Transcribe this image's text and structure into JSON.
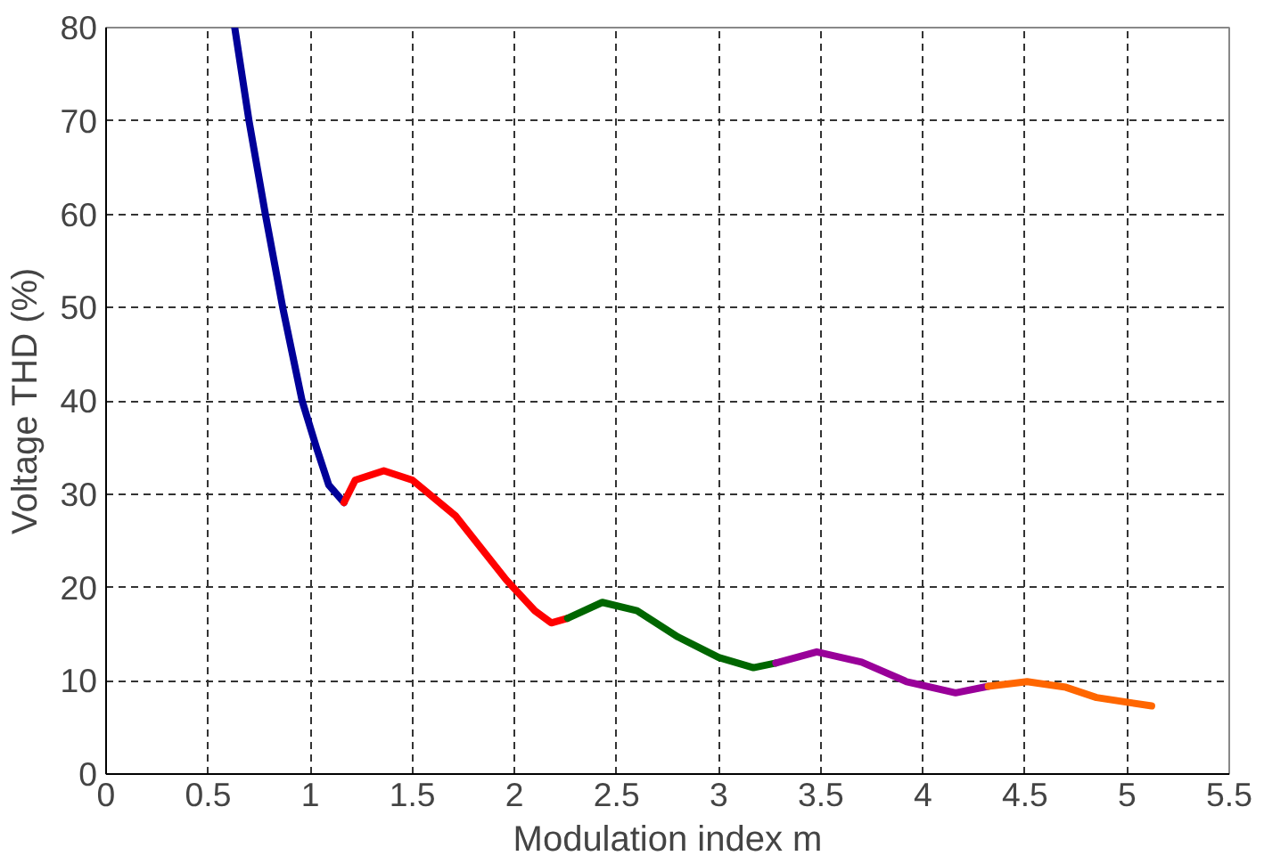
{
  "chart_data": {
    "type": "line",
    "xlabel": "Modulation index m",
    "ylabel": "Voltage THD (%)",
    "xlim": [
      0,
      5.5
    ],
    "ylim": [
      0,
      80
    ],
    "xticks": [
      0,
      0.5,
      1,
      1.5,
      2,
      2.5,
      3,
      3.5,
      4,
      4.5,
      5,
      5.5
    ],
    "yticks": [
      0,
      10,
      20,
      30,
      40,
      50,
      60,
      70,
      80
    ],
    "grid": true,
    "series": [
      {
        "color": "#000099",
        "x": [
          0.63,
          0.7,
          0.78,
          0.865,
          0.96,
          1.03,
          1.09,
          1.165
        ],
        "values": [
          80,
          70,
          60,
          50,
          40,
          35,
          31,
          29.1
        ]
      },
      {
        "color": "#ff0000",
        "x": [
          1.165,
          1.22,
          1.36,
          1.5,
          1.71,
          1.96,
          2.1,
          2.18,
          2.26
        ],
        "values": [
          29.1,
          31.5,
          32.5,
          31.5,
          27.7,
          20.8,
          17.5,
          16.2,
          16.7
        ]
      },
      {
        "color": "#006600",
        "x": [
          2.26,
          2.43,
          2.6,
          2.8,
          3.0,
          3.17,
          3.28
        ],
        "values": [
          16.7,
          18.4,
          17.5,
          14.7,
          12.5,
          11.4,
          11.9
        ]
      },
      {
        "color": "#990099",
        "x": [
          3.28,
          3.48,
          3.7,
          3.92,
          4.16,
          4.32
        ],
        "values": [
          11.9,
          13.1,
          12,
          9.9,
          8.7,
          9.4
        ]
      },
      {
        "color": "#ff6600",
        "x": [
          4.32,
          4.51,
          4.7,
          4.85,
          5.12
        ],
        "values": [
          9.4,
          9.9,
          9.3,
          8.2,
          7.3
        ]
      }
    ]
  }
}
